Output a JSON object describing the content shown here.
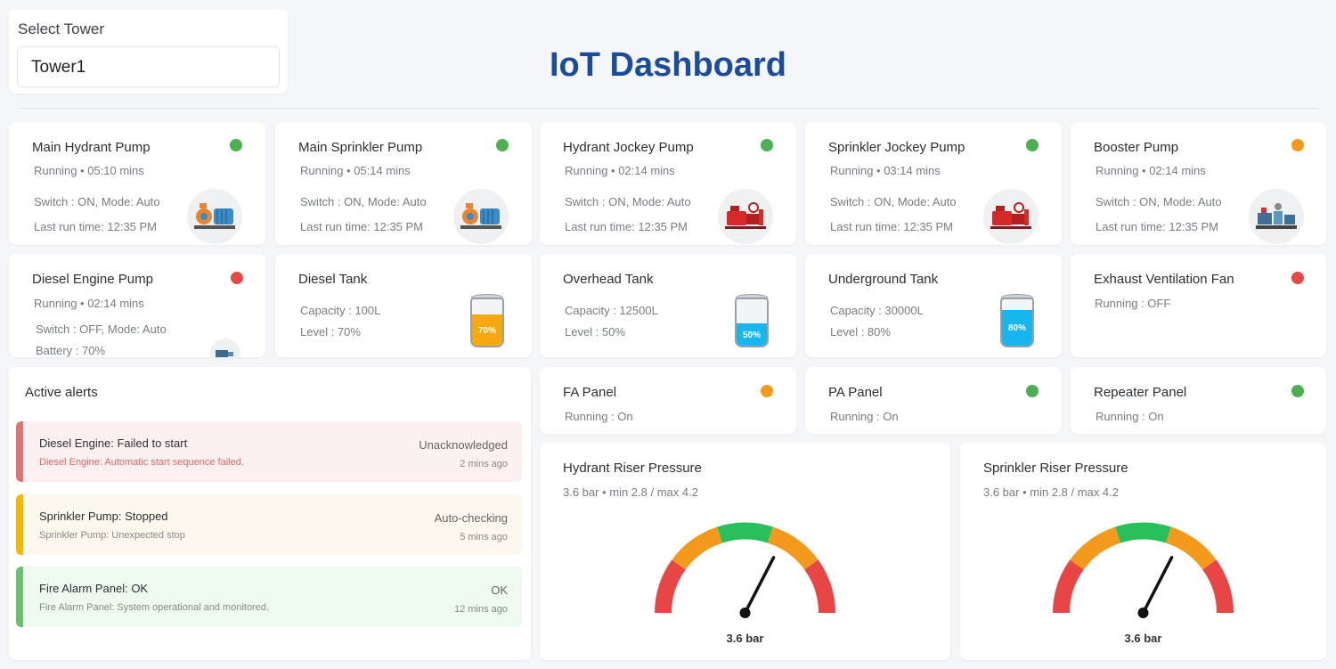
{
  "tower_select": {
    "label": "Select Tower",
    "value": "Tower1"
  },
  "page_title": "IoT Dashboard",
  "colors": {
    "green": "#4cb050",
    "orange": "#f39a1d",
    "red": "#e54848",
    "title_blue": "#1a4b9c"
  },
  "pumps": [
    {
      "name": "Main Hydrant Pump",
      "status": "Running • 05:10 mins",
      "switch": "Switch : ON, Mode: Auto",
      "last_run": "Last run time: 12:35 PM",
      "indicator": "green",
      "icon": "blue-pump-motor-icon"
    },
    {
      "name": "Main Sprinkler Pump",
      "status": "Running • 05:14 mins",
      "switch": "Switch : ON, Mode: Auto",
      "last_run": "Last run time: 12:35 PM",
      "indicator": "green",
      "icon": "blue-pump-motor-icon"
    },
    {
      "name": "Hydrant Jockey Pump",
      "status": "Running • 02:14 mins",
      "switch": "Switch : ON, Mode: Auto",
      "last_run": "Last run time: 12:35 PM",
      "indicator": "green",
      "icon": "red-fire-pump-icon"
    },
    {
      "name": "Sprinkler Jockey Pump",
      "status": "Running • 03:14 mins",
      "switch": "Switch : ON, Mode: Auto",
      "last_run": "Last run time: 12:35 PM",
      "indicator": "green",
      "icon": "red-fire-pump-icon"
    },
    {
      "name": "Booster Pump",
      "status": "Running • 02:14 mins",
      "switch": "Switch : ON, Mode: Auto",
      "last_run": "Last run time: 12:35 PM",
      "indicator": "orange",
      "icon": "booster-pump-skid-icon"
    }
  ],
  "diesel_pump": {
    "name": "Diesel Engine Pump",
    "status": "Running • 02:14 mins",
    "switch": "Switch : OFF, Mode: Auto",
    "battery": "Battery : 70%",
    "indicator": "red",
    "icon": "diesel-engine-icon"
  },
  "tanks": [
    {
      "name": "Diesel Tank",
      "capacity": "Capacity : 100L",
      "level_text": "Level : 70%",
      "level_label": "70%",
      "level": 0.7,
      "color": "#f6a90f"
    },
    {
      "name": "Overhead Tank",
      "capacity": "Capacity : 12500L",
      "level_text": "Level : 50%",
      "level_label": "50%",
      "level": 0.5,
      "color": "#18b6ee"
    },
    {
      "name": "Underground Tank",
      "capacity": "Capacity : 30000L",
      "level_text": "Level : 80%",
      "level_label": "80%",
      "level": 0.8,
      "color": "#18b6ee"
    }
  ],
  "fan": {
    "name": "Exhaust Ventilation Fan",
    "status": "Running : OFF",
    "indicator": "red"
  },
  "panels": [
    {
      "name": "FA Panel",
      "status": "Running : On",
      "indicator": "orange"
    },
    {
      "name": "PA Panel",
      "status": "Running : On",
      "indicator": "green"
    },
    {
      "name": "Repeater Panel",
      "status": "Running : On",
      "indicator": "green"
    }
  ],
  "alerts": {
    "title": "Active alerts",
    "items": [
      {
        "title": "Diesel Engine: Failed to start",
        "desc": "Diesel Engine: Automatic start sequence failed.",
        "state": "Unacknowledged",
        "time": "2 mins ago",
        "bg": "#fdf0f0",
        "bar": "#e07474",
        "desc_color": "#e06666"
      },
      {
        "title": "Sprinkler Pump: Stopped",
        "desc": "Sprinkler Pump: Unexpected stop",
        "state": "Auto-checking",
        "time": "5 mins ago",
        "bg": "#fdf8ee",
        "bar": "#f5b800",
        "desc_color": "#888888"
      },
      {
        "title": "Fire Alarm Panel: OK",
        "desc": "Fire Alarm Panel: System operational and monitored.",
        "state": "OK",
        "time": "12 mins ago",
        "bg": "#eefaf0",
        "bar": "#6cc070",
        "desc_color": "#888888"
      }
    ]
  },
  "gauges": [
    {
      "name": "Hydrant Riser Pressure",
      "sub": "3.6 bar • min 2.8 / max 4.2",
      "value": 3.6,
      "min": 2.8,
      "max": 4.2,
      "value_label": "3.6 bar"
    },
    {
      "name": "Sprinkler Riser Pressure",
      "sub": "3.6 bar • min 2.8 / max 4.2",
      "value": 3.6,
      "min": 2.8,
      "max": 4.2,
      "value_label": "3.6 bar"
    }
  ]
}
